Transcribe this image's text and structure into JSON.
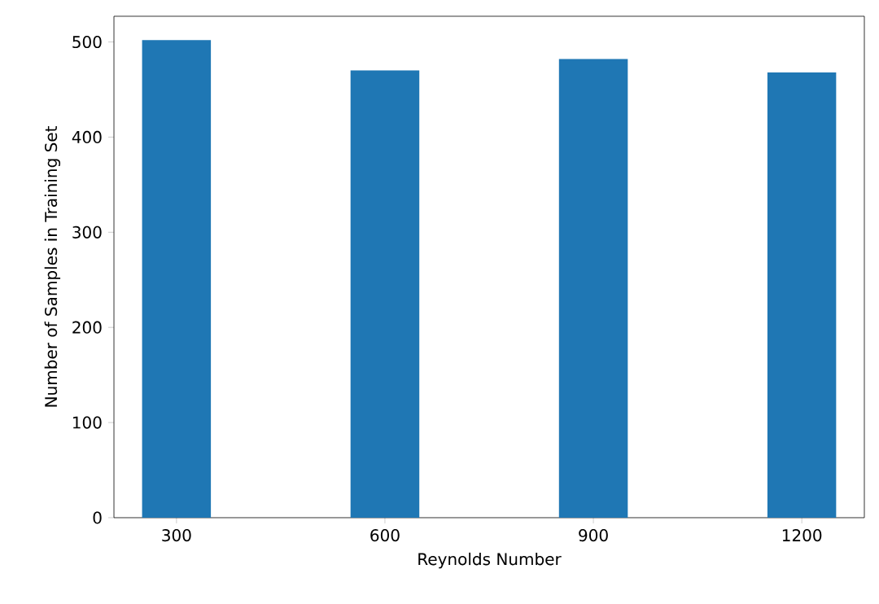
{
  "chart_data": {
    "type": "bar",
    "xlabel": "Reynolds Number",
    "ylabel": "Number of Samples in Training Set",
    "categories": [
      "300",
      "600",
      "900",
      "1200"
    ],
    "values": [
      502,
      470,
      482,
      468
    ],
    "color": "#1f77b4",
    "ylim": [
      0,
      527
    ],
    "yticks": [
      0,
      100,
      200,
      300,
      400,
      500
    ],
    "grid": false
  }
}
